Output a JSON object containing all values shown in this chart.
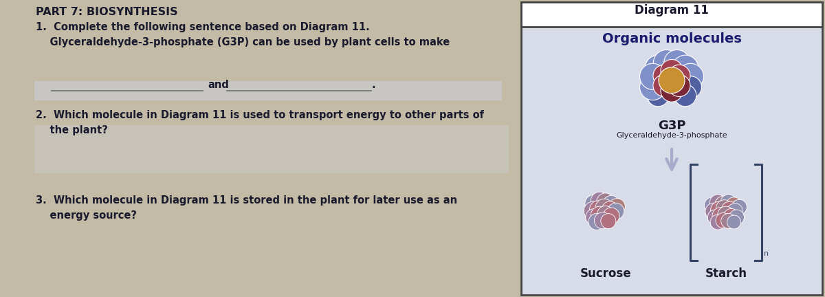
{
  "bg_color": "#c4bba6",
  "left_bg": "#c4bba6",
  "diagram_box_bg": "#d8dce8",
  "diagram_box_border": "#444444",
  "diagram_title_bg": "#ffffff",
  "answer_row_bg": "#cdd0dc",
  "title_text": "PART 7: BIOSYNTHESIS",
  "q1_line1": "1.  Complete the following sentence based on Diagram 11.",
  "q1_line2": "    Glyceraldehyde-3-phosphate (G3P) can be used by plant cells to make",
  "q1_and": "and",
  "q2_line1": "2.  Which molecule in Diagram 11 is used to transport energy to other parts of",
  "q2_line2": "    the plant?",
  "q3_line1": "3.  Which molecule in Diagram 11 is stored in the plant for later use as an",
  "q3_line2": "    energy source?",
  "diagram_title": "Diagram 11",
  "diagram_subtitle": "Organic molecules",
  "g3p_label": "G3P",
  "g3p_sublabel": "Glyceraldehyde-3-phosphate",
  "sucrose_label": "Sucrose",
  "starch_label": "Starch",
  "text_color": "#1a1a2e",
  "answer_line_color": "#777777",
  "arrow_color": "#aaaacc",
  "bracket_color": "#334466"
}
